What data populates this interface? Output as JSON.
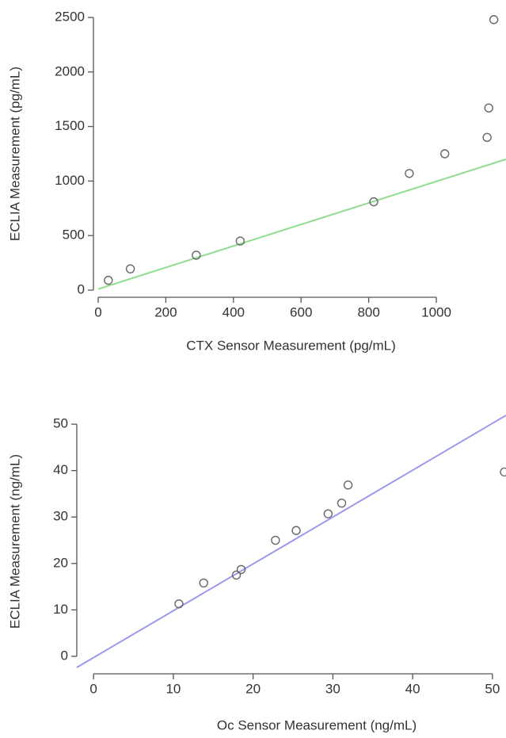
{
  "chart_data": [
    {
      "type": "scatter",
      "xlabel": "CTX Sensor Measurement (pg/mL)",
      "ylabel": "ECLIA Measurement (pg/mL)",
      "x": [
        30,
        95,
        290,
        420,
        815,
        920,
        1025,
        1150,
        1155,
        1170
      ],
      "values": [
        90,
        195,
        320,
        450,
        810,
        1070,
        1250,
        1400,
        1670,
        2480
      ],
      "color": "#666666",
      "fit_line": {
        "x": [
          0,
          1206
        ],
        "values": [
          10,
          1200
        ],
        "color": "#90dc90"
      },
      "xlim": [
        0,
        1206
      ],
      "ylim": [
        0,
        2500
      ],
      "xticks": [
        0,
        200,
        400,
        600,
        800,
        1000
      ],
      "yticks": [
        0,
        500,
        1000,
        1500,
        2000,
        2500
      ]
    },
    {
      "type": "scatter",
      "xlabel": "Oc Sensor Measurement (ng/mL)",
      "ylabel": "ECLIA Measurement (ng/mL)",
      "x": [
        10.7,
        13.8,
        17.9,
        18.5,
        22.8,
        25.4,
        29.4,
        31.1,
        31.9,
        51.5
      ],
      "values": [
        11.3,
        15.8,
        17.5,
        18.7,
        25,
        27.1,
        30.7,
        33,
        36.9,
        39.7
      ],
      "color": "#666666",
      "fit_line": {
        "x": [
          -2.1,
          51.7
        ],
        "values": [
          -2.4,
          51.9
        ],
        "color": "#9999ee"
      },
      "xlim": [
        -2.1,
        51.7
      ],
      "ylim": [
        -2.4,
        51.9
      ],
      "xticks": [
        0,
        10,
        20,
        30,
        40,
        50
      ],
      "yticks": [
        0,
        10,
        20,
        30,
        40,
        50
      ]
    }
  ]
}
